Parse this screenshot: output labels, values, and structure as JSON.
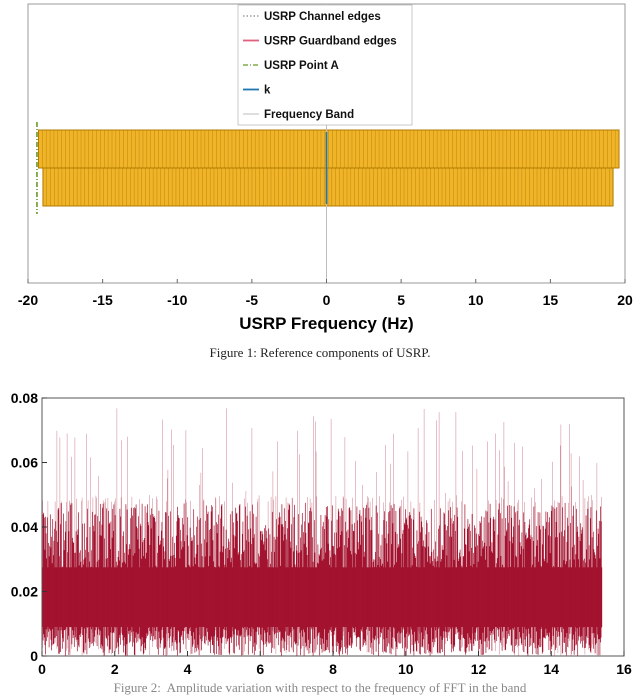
{
  "figure1": {
    "caption_prefix": "Figure 1:",
    "caption_text": "Reference components of USRP.",
    "chart_data": {
      "type": "bar",
      "xlabel": "USRP Frequency (Hz)",
      "xlim": [
        -20,
        20
      ],
      "xticks": [
        -20,
        -15,
        -10,
        -5,
        0,
        5,
        10,
        15,
        20
      ],
      "legend_position": "top-center",
      "legend": [
        {
          "label": "USRP Channel edges",
          "style": "dotted",
          "color": "#8a8a8a"
        },
        {
          "label": "USRP Guardband edges",
          "style": "solid",
          "color": "#e0607e"
        },
        {
          "label": "USRP Point A",
          "style": "dashdot",
          "color": "#6a9a2a"
        },
        {
          "label": "k",
          "style": "solid",
          "color": "#1f77b4"
        },
        {
          "label": "Frequency Band",
          "style": "solid",
          "color": "#c8c8c8"
        }
      ],
      "rows": [
        {
          "x_start": -19.3,
          "x_end": 19.6,
          "color": "#f0b429"
        },
        {
          "x_start": -19.0,
          "x_end": 19.2,
          "color": "#f0b429"
        }
      ],
      "point_a": -19.4,
      "k": 0
    }
  },
  "figure2": {
    "caption_visible": "Figure 2:  Amplitude variation with respect to the frequency of FFT in the band",
    "chart_data": {
      "type": "area",
      "xlim": [
        0,
        16
      ],
      "ylim": [
        0,
        0.08
      ],
      "xticks": [
        0,
        2,
        4,
        6,
        8,
        10,
        12,
        14,
        16
      ],
      "yticks": [
        0,
        0.02,
        0.04,
        0.06,
        0.08
      ],
      "x_extent": [
        0,
        15.4
      ],
      "amplitude_dense_max": 0.05,
      "amplitude_peak_max": 0.078,
      "amplitude_floor": 0.003,
      "series_color": "#a3132f"
    }
  }
}
